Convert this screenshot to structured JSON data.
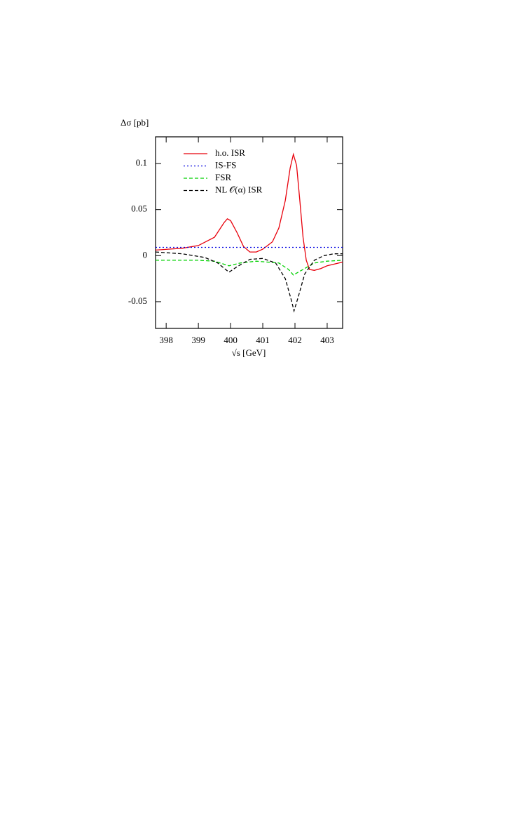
{
  "chart_data": {
    "type": "line",
    "x_label": "√s [GeV]",
    "y_label": "Δσ [pb]",
    "xlim": [
      397.67,
      403.48
    ],
    "ylim": [
      -0.079,
      0.129
    ],
    "xticks": [
      398,
      399,
      400,
      401,
      402,
      403
    ],
    "yticks": [
      -0.05,
      0,
      0.05,
      0.1
    ],
    "legend_position": "upper-left",
    "series": [
      {
        "name": "h.o. ISR",
        "color": "#e8000b",
        "linestyle": "solid",
        "x": [
          397.67,
          398.5,
          399.0,
          399.5,
          399.8,
          399.9,
          400.0,
          400.2,
          400.4,
          400.6,
          400.8,
          401.0,
          401.3,
          401.5,
          401.7,
          401.85,
          401.95,
          402.05,
          402.15,
          402.25,
          402.35,
          402.45,
          402.6,
          402.8,
          403.0,
          403.48
        ],
        "values": [
          0.006,
          0.008,
          0.011,
          0.02,
          0.036,
          0.04,
          0.038,
          0.025,
          0.01,
          0.004,
          0.004,
          0.007,
          0.015,
          0.03,
          0.06,
          0.095,
          0.11,
          0.098,
          0.06,
          0.02,
          -0.005,
          -0.015,
          -0.016,
          -0.014,
          -0.011,
          -0.007
        ]
      },
      {
        "name": "IS-FS",
        "color": "#0000e0",
        "linestyle": "dotted",
        "x": [
          397.67,
          399.0,
          401.0,
          403.48
        ],
        "values": [
          0.009,
          0.009,
          0.009,
          0.009
        ]
      },
      {
        "name": "FSR",
        "color": "#00d000",
        "linestyle": "dashed",
        "x": [
          397.67,
          399.0,
          399.5,
          399.95,
          400.3,
          400.8,
          401.5,
          401.8,
          401.95,
          402.2,
          402.6,
          403.0,
          403.48
        ],
        "values": [
          -0.005,
          -0.005,
          -0.006,
          -0.011,
          -0.008,
          -0.006,
          -0.008,
          -0.015,
          -0.021,
          -0.016,
          -0.008,
          -0.006,
          -0.005
        ]
      },
      {
        "name": "NL 𝒪(α) ISR",
        "color": "#000000",
        "linestyle": "dashed",
        "x": [
          397.67,
          398.5,
          399.2,
          399.6,
          399.95,
          400.2,
          400.6,
          401.0,
          401.4,
          401.7,
          401.9,
          401.97,
          402.1,
          402.3,
          402.6,
          402.9,
          403.2,
          403.48
        ],
        "values": [
          0.004,
          0.002,
          -0.002,
          -0.008,
          -0.018,
          -0.012,
          -0.004,
          -0.003,
          -0.008,
          -0.025,
          -0.05,
          -0.06,
          -0.045,
          -0.02,
          -0.005,
          0.0,
          0.002,
          0.002
        ]
      }
    ]
  }
}
